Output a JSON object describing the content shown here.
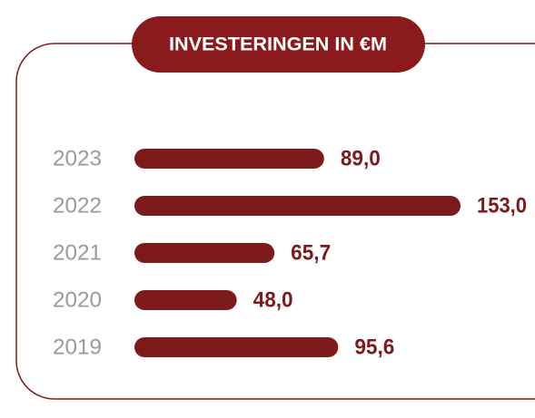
{
  "chart_data": {
    "type": "bar",
    "orientation": "horizontal",
    "title": "INVESTERINGEN IN €M",
    "categories": [
      "2023",
      "2022",
      "2021",
      "2020",
      "2019"
    ],
    "values": [
      89.0,
      153.0,
      65.7,
      48.0,
      95.6
    ],
    "value_labels": [
      "89,0",
      "153,0",
      "65,7",
      "48,0",
      "95,6"
    ],
    "color": "#7d1a1c"
  }
}
